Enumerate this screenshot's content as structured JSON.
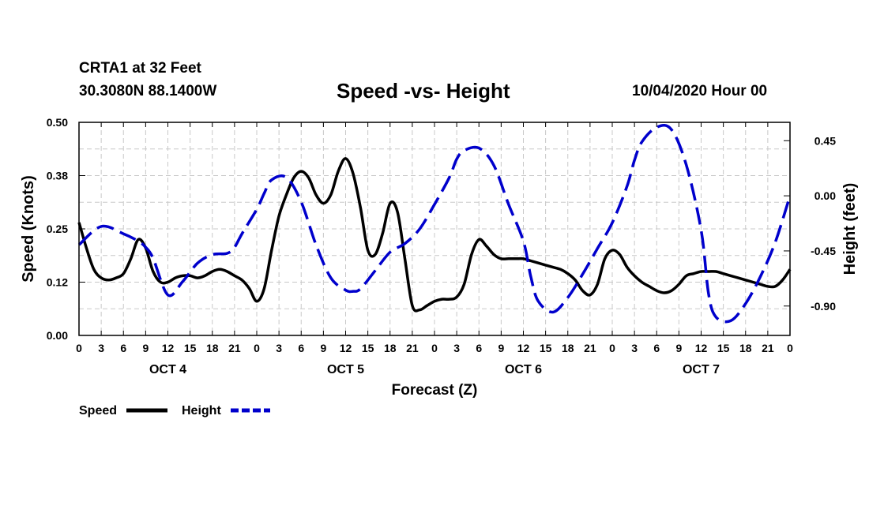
{
  "header": {
    "station": "CRTA1 at 32 Feet",
    "coords": "30.3080N 88.1400W",
    "title": "Speed -vs- Height",
    "timestamp": "10/04/2020 Hour 00"
  },
  "chart_data": {
    "type": "line",
    "title": "Speed -vs- Height",
    "xlabel": "Forecast (Z)",
    "ylabel": "Speed (Knots)",
    "y2label": "Height (feet)",
    "x_ticks": [
      "0",
      "3",
      "6",
      "9",
      "12",
      "15",
      "18",
      "21",
      "0",
      "3",
      "6",
      "9",
      "12",
      "15",
      "18",
      "21",
      "0",
      "3",
      "6",
      "9",
      "12",
      "15",
      "18",
      "21",
      "0",
      "3",
      "6",
      "9",
      "12",
      "15",
      "18",
      "21",
      "0"
    ],
    "day_labels": [
      {
        "label": "OCT 4",
        "hour": 12
      },
      {
        "label": "OCT 5",
        "hour": 36
      },
      {
        "label": "OCT 6",
        "hour": 60
      },
      {
        "label": "OCT 7",
        "hour": 84
      }
    ],
    "xlim": [
      0,
      96
    ],
    "ylim": [
      0,
      0.5
    ],
    "y_ticks": [
      "0.00",
      "0.12",
      "0.25",
      "0.38",
      "0.50"
    ],
    "y_tick_values": [
      0,
      0.125,
      0.25,
      0.375,
      0.5
    ],
    "y2lim": [
      -1.14,
      0.6
    ],
    "y2_ticks": [
      "0.45",
      "0.00",
      "-0.45",
      "-0.90"
    ],
    "y2_tick_values": [
      0.45,
      0,
      -0.45,
      -0.9
    ],
    "grid": true,
    "legend": "bottom-left",
    "series": [
      {
        "name": "Speed",
        "axis": "left",
        "color": "#000000",
        "style": "solid",
        "x": [
          0,
          1,
          2,
          3,
          4,
          5,
          6,
          7,
          8,
          9,
          10,
          11,
          12,
          13,
          14,
          15,
          16,
          17,
          18,
          19,
          20,
          21,
          22,
          23,
          24,
          25,
          26,
          27,
          28,
          29,
          30,
          31,
          32,
          33,
          34,
          35,
          36,
          37,
          38,
          39,
          40,
          41,
          42,
          43,
          44,
          45,
          46,
          47,
          48,
          49,
          50,
          51,
          52,
          53,
          54,
          55,
          56,
          57,
          58,
          59,
          60,
          61,
          62,
          63,
          64,
          65,
          66,
          67,
          68,
          69,
          70,
          71,
          72,
          73,
          74,
          75,
          76,
          77,
          78,
          79,
          80,
          81,
          82,
          83,
          84,
          85,
          86,
          87,
          88,
          89,
          90,
          91,
          92,
          93,
          94,
          95,
          96
        ],
        "values": [
          0.265,
          0.205,
          0.155,
          0.135,
          0.13,
          0.135,
          0.145,
          0.18,
          0.225,
          0.205,
          0.15,
          0.125,
          0.125,
          0.135,
          0.14,
          0.14,
          0.135,
          0.14,
          0.15,
          0.155,
          0.15,
          0.14,
          0.13,
          0.11,
          0.08,
          0.11,
          0.2,
          0.28,
          0.33,
          0.37,
          0.385,
          0.37,
          0.33,
          0.31,
          0.33,
          0.385,
          0.415,
          0.38,
          0.3,
          0.2,
          0.19,
          0.24,
          0.31,
          0.29,
          0.18,
          0.07,
          0.06,
          0.07,
          0.08,
          0.085,
          0.085,
          0.09,
          0.12,
          0.19,
          0.225,
          0.21,
          0.19,
          0.18,
          0.18,
          0.18,
          0.18,
          0.175,
          0.17,
          0.165,
          0.16,
          0.155,
          0.145,
          0.13,
          0.105,
          0.095,
          0.12,
          0.18,
          0.2,
          0.19,
          0.16,
          0.14,
          0.125,
          0.115,
          0.105,
          0.1,
          0.105,
          0.12,
          0.14,
          0.145,
          0.15,
          0.15,
          0.15,
          0.145,
          0.14,
          0.135,
          0.13,
          0.125,
          0.12,
          0.115,
          0.115,
          0.13,
          0.155
        ]
      },
      {
        "name": "Height",
        "axis": "right",
        "color": "#0000cc",
        "style": "dashed",
        "x": [
          0,
          3,
          6,
          8,
          9,
          10,
          12,
          14,
          16,
          18,
          20,
          21,
          22,
          24,
          25,
          26,
          28,
          30,
          32,
          34,
          36,
          37,
          38,
          40,
          42,
          44,
          46,
          48,
          50,
          51,
          52,
          54,
          56,
          58,
          60,
          61,
          62,
          64,
          66,
          68,
          70,
          72,
          74,
          75,
          76,
          78,
          80,
          82,
          84,
          85,
          86,
          88,
          90,
          92,
          94,
          96
        ],
        "values": [
          -0.4,
          -0.25,
          -0.31,
          -0.37,
          -0.42,
          -0.51,
          -0.81,
          -0.7,
          -0.55,
          -0.48,
          -0.47,
          -0.42,
          -0.31,
          -0.11,
          0.02,
          0.13,
          0.15,
          -0.05,
          -0.4,
          -0.67,
          -0.77,
          -0.78,
          -0.76,
          -0.61,
          -0.46,
          -0.39,
          -0.27,
          -0.07,
          0.15,
          0.3,
          0.37,
          0.39,
          0.25,
          -0.07,
          -0.37,
          -0.66,
          -0.86,
          -0.95,
          -0.83,
          -0.64,
          -0.43,
          -0.22,
          0.08,
          0.29,
          0.44,
          0.56,
          0.54,
          0.25,
          -0.28,
          -0.8,
          -0.99,
          -1.02,
          -0.88,
          -0.66,
          -0.38,
          0.0
        ]
      }
    ]
  },
  "legend": {
    "speed_label": "Speed",
    "height_label": "Height"
  }
}
